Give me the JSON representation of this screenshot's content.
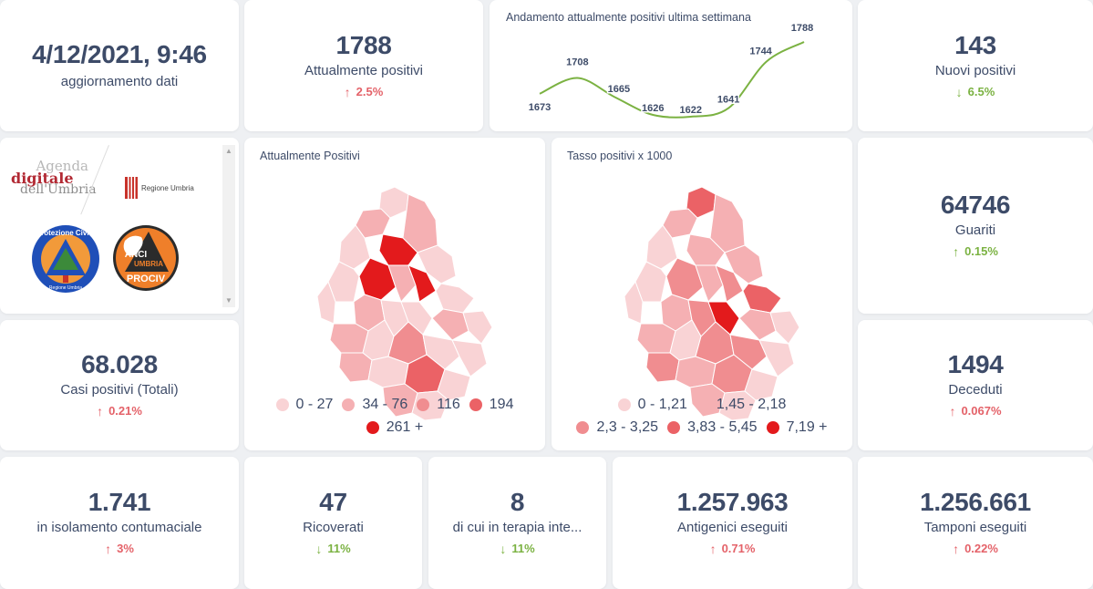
{
  "update": {
    "value": "4/12/2021, 9:46",
    "label": "aggiornamento dati"
  },
  "kpis": {
    "attualmente_positivi": {
      "value": "1788",
      "label": "Attualmente positivi",
      "delta": "2.5%",
      "arrow": "↑",
      "trend": "up",
      "color": "#e46269"
    },
    "nuovi_positivi": {
      "value": "143",
      "label": "Nuovi positivi",
      "delta": "6.5%",
      "arrow": "↓",
      "trend": "down",
      "color": "#7bb242"
    },
    "casi_totali": {
      "value": "68.028",
      "label": "Casi positivi (Totali)",
      "delta": "0.21%",
      "arrow": "↑",
      "trend": "up",
      "color": "#e46269"
    },
    "guariti": {
      "value": "64746",
      "label": "Guariti",
      "delta": "0.15%",
      "arrow": "↑",
      "trend": "up",
      "color": "#7bb242"
    },
    "deceduti": {
      "value": "1494",
      "label": "Deceduti",
      "delta": "0.067%",
      "arrow": "↑",
      "trend": "up",
      "color": "#e46269"
    },
    "isolamento": {
      "value": "1.741",
      "label": "in isolamento contumaciale",
      "delta": "3%",
      "arrow": "↑",
      "trend": "up",
      "color": "#e46269"
    },
    "ricoverati": {
      "value": "47",
      "label": "Ricoverati",
      "delta": "11%",
      "arrow": "↓",
      "trend": "down",
      "color": "#7bb242"
    },
    "terapia_intensiva": {
      "value": "8",
      "label": "di cui in terapia inte...",
      "delta": "11%",
      "arrow": "↓",
      "trend": "down",
      "color": "#7bb242"
    },
    "antigenici": {
      "value": "1.257.963",
      "label": "Antigenici eseguiti",
      "delta": "0.71%",
      "arrow": "↑",
      "trend": "up",
      "color": "#e46269"
    },
    "tamponi": {
      "value": "1.256.661",
      "label": "Tamponi eseguiti",
      "delta": "0.22%",
      "arrow": "↑",
      "trend": "up",
      "color": "#e46269"
    }
  },
  "chart_data": {
    "type": "line",
    "title": "Andamento attualmente positivi ultima settimana",
    "x": [
      1,
      2,
      3,
      4,
      5,
      6,
      7,
      8
    ],
    "values": [
      1673,
      1708,
      1665,
      1626,
      1622,
      1641,
      1744,
      1788
    ],
    "xlabel": "",
    "ylabel": "",
    "grid": false,
    "line_color": "#7bb242"
  },
  "logos": {
    "agenda_line1": "Agenda",
    "agenda_line2": "digitale",
    "agenda_line3": "dell'Umbria",
    "regione": "Regione Umbria",
    "protezione_top": "Protezione Civile",
    "protezione_bottom": "Regione Umbria",
    "anci_line1": "ANCI",
    "anci_line2": "UMBRIA",
    "anci_line3": "PROCIV"
  },
  "maps": {
    "positivi": {
      "title": "Attualmente Positivi",
      "legend": [
        {
          "label": "0 - 27",
          "color": "#f9d3d5"
        },
        {
          "label": "34 - 76",
          "color": "#f5b0b3"
        },
        {
          "label": "116",
          "color": "#f08d90"
        },
        {
          "label": "194",
          "color": "#eb6266"
        },
        {
          "label": "261 +",
          "color": "#e31a1c"
        }
      ]
    },
    "tasso": {
      "title": "Tasso positivi x 1000",
      "legend": [
        {
          "label": "0 - 1,21",
          "color": "#f9d3d5"
        },
        {
          "label": "1,45 - 2,18",
          "color": "#f5b0b3"
        },
        {
          "label": "2,3 - 3,25",
          "color": "#f08d90"
        },
        {
          "label": "3,83 - 5,45",
          "color": "#eb6266"
        },
        {
          "label": "7,19 +",
          "color": "#e31a1c"
        }
      ]
    }
  }
}
